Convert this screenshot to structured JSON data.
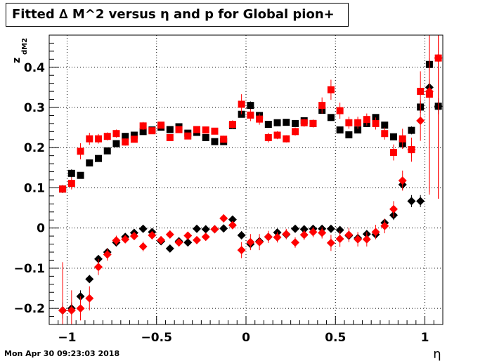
{
  "chart_data": {
    "type": "scatter",
    "title": "Fitted ∆ M^2 versus η and p for Global pion+",
    "xlabel": "η",
    "ylabel": "z",
    "ylabel_sub": "dM2",
    "xlim": [
      -1.1,
      1.1
    ],
    "ylim": [
      -0.24,
      0.48
    ],
    "xticks": [
      -1,
      -0.5,
      0,
      0.5,
      1
    ],
    "xtick_labels": [
      "−1",
      "−0.5",
      "0",
      "0.5",
      "1"
    ],
    "yticks": [
      -0.2,
      -0.1,
      0,
      0.1,
      0.2,
      0.3,
      0.4
    ],
    "ytick_labels": [
      "−0.2",
      "−0.1",
      "0",
      "0.1",
      "0.2",
      "0.3",
      "0.4"
    ],
    "grid": true,
    "series": [
      {
        "marker": "square",
        "color": "#000000",
        "points": [
          [
            -1.025,
            0.097,
            0.01
          ],
          [
            -0.975,
            0.136,
            0.01
          ],
          [
            -0.925,
            0.131,
            0.008
          ],
          [
            -0.875,
            0.162,
            0.007
          ],
          [
            -0.825,
            0.173,
            0.005
          ],
          [
            -0.775,
            0.192,
            0.005
          ],
          [
            -0.725,
            0.21,
            0.005
          ],
          [
            -0.675,
            0.228,
            0.005
          ],
          [
            -0.625,
            0.231,
            0.004
          ],
          [
            -0.575,
            0.24,
            0.004
          ],
          [
            -0.525,
            0.244,
            0.004
          ],
          [
            -0.475,
            0.251,
            0.004
          ],
          [
            -0.425,
            0.245,
            0.005
          ],
          [
            -0.375,
            0.252,
            0.004
          ],
          [
            -0.325,
            0.236,
            0.004
          ],
          [
            -0.275,
            0.238,
            0.004
          ],
          [
            -0.225,
            0.225,
            0.004
          ],
          [
            -0.175,
            0.215,
            0.005
          ],
          [
            -0.125,
            0.215,
            0.005
          ],
          [
            -0.075,
            0.255,
            0.005
          ],
          [
            -0.025,
            0.283,
            0.007
          ],
          [
            0.025,
            0.305,
            0.01
          ],
          [
            0.075,
            0.28,
            0.008
          ],
          [
            0.125,
            0.258,
            0.006
          ],
          [
            0.175,
            0.262,
            0.005
          ],
          [
            0.225,
            0.263,
            0.005
          ],
          [
            0.275,
            0.26,
            0.005
          ],
          [
            0.325,
            0.267,
            0.005
          ],
          [
            0.375,
            0.26,
            0.006
          ],
          [
            0.425,
            0.293,
            0.007
          ],
          [
            0.475,
            0.275,
            0.007
          ],
          [
            0.525,
            0.244,
            0.006
          ],
          [
            0.575,
            0.232,
            0.006
          ],
          [
            0.625,
            0.244,
            0.006
          ],
          [
            0.675,
            0.26,
            0.006
          ],
          [
            0.725,
            0.275,
            0.007
          ],
          [
            0.775,
            0.256,
            0.008
          ],
          [
            0.825,
            0.227,
            0.008
          ],
          [
            0.875,
            0.21,
            0.012
          ],
          [
            0.925,
            0.243,
            0.01
          ],
          [
            0.975,
            0.301,
            0.015
          ],
          [
            1.025,
            0.407,
            0.015
          ],
          [
            1.075,
            0.303,
            0.01
          ]
        ]
      },
      {
        "marker": "square",
        "color": "#ff0000",
        "points": [
          [
            -1.025,
            0.097,
            0.01
          ],
          [
            -0.975,
            0.111,
            0.015
          ],
          [
            -0.925,
            0.191,
            0.02
          ],
          [
            -0.875,
            0.222,
            0.015
          ],
          [
            -0.825,
            0.222,
            0.012
          ],
          [
            -0.775,
            0.228,
            0.01
          ],
          [
            -0.725,
            0.235,
            0.01
          ],
          [
            -0.675,
            0.214,
            0.009
          ],
          [
            -0.625,
            0.221,
            0.008
          ],
          [
            -0.575,
            0.254,
            0.01
          ],
          [
            -0.525,
            0.242,
            0.008
          ],
          [
            -0.475,
            0.256,
            0.008
          ],
          [
            -0.425,
            0.225,
            0.008
          ],
          [
            -0.375,
            0.245,
            0.007
          ],
          [
            -0.325,
            0.229,
            0.007
          ],
          [
            -0.275,
            0.245,
            0.007
          ],
          [
            -0.225,
            0.244,
            0.007
          ],
          [
            -0.175,
            0.241,
            0.008
          ],
          [
            -0.125,
            0.221,
            0.009
          ],
          [
            -0.075,
            0.258,
            0.01
          ],
          [
            -0.025,
            0.308,
            0.025
          ],
          [
            0.025,
            0.281,
            0.015
          ],
          [
            0.075,
            0.271,
            0.014
          ],
          [
            0.125,
            0.225,
            0.012
          ],
          [
            0.175,
            0.231,
            0.01
          ],
          [
            0.225,
            0.222,
            0.009
          ],
          [
            0.275,
            0.24,
            0.01
          ],
          [
            0.325,
            0.262,
            0.01
          ],
          [
            0.375,
            0.26,
            0.01
          ],
          [
            0.425,
            0.305,
            0.02
          ],
          [
            0.475,
            0.344,
            0.025
          ],
          [
            0.525,
            0.292,
            0.02
          ],
          [
            0.575,
            0.262,
            0.015
          ],
          [
            0.625,
            0.262,
            0.015
          ],
          [
            0.675,
            0.27,
            0.015
          ],
          [
            0.725,
            0.26,
            0.015
          ],
          [
            0.775,
            0.235,
            0.015
          ],
          [
            0.825,
            0.188,
            0.02
          ],
          [
            0.875,
            0.222,
            0.025
          ],
          [
            0.925,
            0.195,
            0.02
          ],
          [
            0.975,
            0.34,
            0.05
          ],
          [
            1.025,
            0.333,
            0.25
          ],
          [
            1.075,
            0.423,
            0.35
          ]
        ]
      },
      {
        "marker": "diamond",
        "color": "#000000",
        "points": [
          [
            -1.025,
            -0.205,
            0.02
          ],
          [
            -0.975,
            -0.2,
            0.015
          ],
          [
            -0.925,
            -0.17,
            0.015
          ],
          [
            -0.875,
            -0.127,
            0.01
          ],
          [
            -0.825,
            -0.077,
            0.008
          ],
          [
            -0.775,
            -0.06,
            0.007
          ],
          [
            -0.725,
            -0.036,
            0.006
          ],
          [
            -0.675,
            -0.022,
            0.005
          ],
          [
            -0.625,
            -0.012,
            0.005
          ],
          [
            -0.575,
            -0.002,
            0.005
          ],
          [
            -0.525,
            -0.01,
            0.005
          ],
          [
            -0.475,
            -0.033,
            0.005
          ],
          [
            -0.425,
            -0.051,
            0.006
          ],
          [
            -0.375,
            -0.033,
            0.005
          ],
          [
            -0.325,
            -0.036,
            0.005
          ],
          [
            -0.275,
            -0.002,
            0.005
          ],
          [
            -0.225,
            -0.003,
            0.005
          ],
          [
            -0.175,
            -0.003,
            0.005
          ],
          [
            -0.125,
            -0.001,
            0.006
          ],
          [
            -0.075,
            0.021,
            0.007
          ],
          [
            -0.025,
            -0.018,
            0.01
          ],
          [
            0.025,
            -0.04,
            0.012
          ],
          [
            0.075,
            -0.033,
            0.01
          ],
          [
            0.125,
            -0.022,
            0.008
          ],
          [
            0.175,
            -0.011,
            0.007
          ],
          [
            0.225,
            -0.016,
            0.007
          ],
          [
            0.275,
            -0.002,
            0.007
          ],
          [
            0.325,
            -0.003,
            0.007
          ],
          [
            0.375,
            -0.002,
            0.007
          ],
          [
            0.425,
            -0.002,
            0.008
          ],
          [
            0.475,
            -0.002,
            0.009
          ],
          [
            0.525,
            -0.005,
            0.009
          ],
          [
            0.575,
            -0.019,
            0.009
          ],
          [
            0.625,
            -0.025,
            0.009
          ],
          [
            0.675,
            -0.015,
            0.009
          ],
          [
            0.725,
            -0.016,
            0.01
          ],
          [
            0.775,
            0.013,
            0.01
          ],
          [
            0.825,
            0.032,
            0.012
          ],
          [
            0.875,
            0.108,
            0.012
          ],
          [
            0.925,
            0.067,
            0.015
          ],
          [
            0.975,
            0.067,
            0.015
          ],
          [
            1.025,
            0.35,
            0.02
          ],
          [
            1.075,
            0.303,
            0.02
          ]
        ]
      },
      {
        "marker": "diamond",
        "color": "#ff0000",
        "points": [
          [
            -1.025,
            -0.205,
            0.12
          ],
          [
            -0.975,
            -0.205,
            0.05
          ],
          [
            -0.925,
            -0.2,
            0.03
          ],
          [
            -0.875,
            -0.175,
            0.03
          ],
          [
            -0.825,
            -0.097,
            0.02
          ],
          [
            -0.775,
            -0.066,
            0.015
          ],
          [
            -0.725,
            -0.031,
            0.012
          ],
          [
            -0.675,
            -0.028,
            0.01
          ],
          [
            -0.625,
            -0.02,
            0.01
          ],
          [
            -0.575,
            -0.046,
            0.012
          ],
          [
            -0.525,
            -0.018,
            0.01
          ],
          [
            -0.475,
            -0.03,
            0.01
          ],
          [
            -0.425,
            -0.016,
            0.01
          ],
          [
            -0.375,
            -0.036,
            0.01
          ],
          [
            -0.325,
            -0.019,
            0.009
          ],
          [
            -0.275,
            -0.03,
            0.009
          ],
          [
            -0.225,
            -0.022,
            0.009
          ],
          [
            -0.175,
            -0.003,
            0.009
          ],
          [
            -0.125,
            0.024,
            0.01
          ],
          [
            -0.075,
            0.007,
            0.01
          ],
          [
            -0.025,
            -0.055,
            0.02
          ],
          [
            0.025,
            -0.035,
            0.02
          ],
          [
            0.075,
            -0.035,
            0.02
          ],
          [
            0.125,
            -0.022,
            0.015
          ],
          [
            0.175,
            -0.023,
            0.013
          ],
          [
            0.225,
            -0.015,
            0.013
          ],
          [
            0.275,
            -0.036,
            0.013
          ],
          [
            0.325,
            -0.017,
            0.013
          ],
          [
            0.375,
            -0.01,
            0.013
          ],
          [
            0.425,
            -0.012,
            0.014
          ],
          [
            0.475,
            -0.037,
            0.02
          ],
          [
            0.525,
            -0.027,
            0.02
          ],
          [
            0.575,
            -0.017,
            0.018
          ],
          [
            0.625,
            -0.028,
            0.018
          ],
          [
            0.675,
            -0.028,
            0.018
          ],
          [
            0.725,
            -0.01,
            0.018
          ],
          [
            0.775,
            0.005,
            0.018
          ],
          [
            0.825,
            0.047,
            0.02
          ],
          [
            0.875,
            0.118,
            0.025
          ],
          [
            0.925,
            0.195,
            0.03
          ],
          [
            0.975,
            0.267,
            0.05
          ],
          [
            1.025,
            0.34,
            0.25
          ],
          [
            1.075,
            0.423,
            0.35
          ]
        ]
      }
    ],
    "footer": "Mon Apr 30 09:23:03 2018"
  }
}
